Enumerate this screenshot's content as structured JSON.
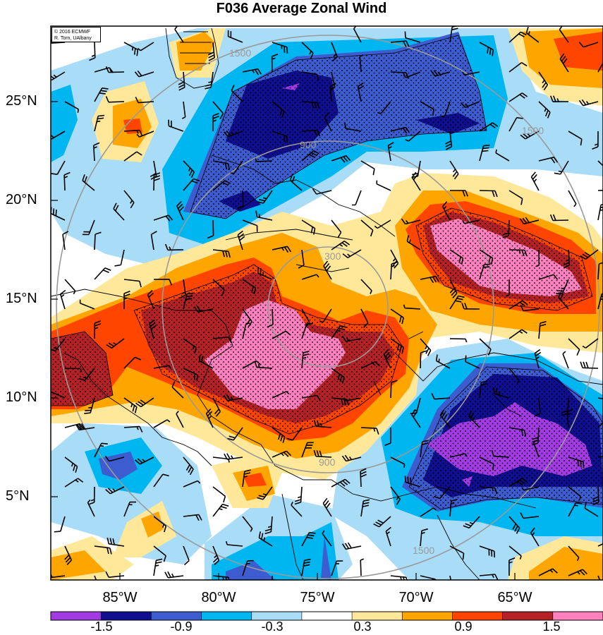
{
  "title": "F036 Average Zonal Wind",
  "credit": {
    "line1": "© 2016 ECMWF",
    "line2": "R. Torn, UAlbany"
  },
  "lat_labels": [
    "25°N",
    "20°N",
    "15°N",
    "10°N",
    "5°N"
  ],
  "lon_labels": [
    "85°W",
    "80°W",
    "75°W",
    "70°W",
    "65°W"
  ],
  "colorbar": {
    "tick_labels": [
      "-1.5",
      "-0.9",
      "-0.3",
      "0.3",
      "0.9",
      "1.5"
    ],
    "colors": [
      "#a23be3",
      "#0f0f8f",
      "#3c5cd0",
      "#00b6f0",
      "#a8dcf7",
      "#ffffff",
      "#ffe89a",
      "#ffa500",
      "#ff4500",
      "#b52226",
      "#ff7fbf"
    ]
  },
  "distance_ring_labels": [
    "300",
    "900",
    "1500"
  ],
  "colors": {
    "purple": "#a23be3",
    "navy": "#0f0f8f",
    "blue": "#3c5cd0",
    "cyan": "#00b6f0",
    "lightblue": "#a8dcf7",
    "yellow": "#ffe89a",
    "orange": "#ffa500",
    "redorange": "#ff4500",
    "darkred": "#b52226",
    "pink": "#ff7fbf",
    "ring": "#9a9a9a"
  }
}
